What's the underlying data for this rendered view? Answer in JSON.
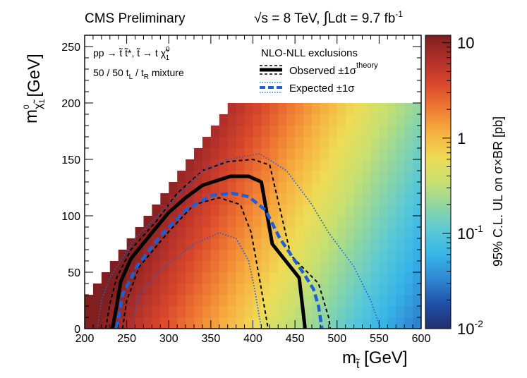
{
  "chart_data": {
    "type": "heatmap",
    "header_left": "CMS Preliminary",
    "header_right": {
      "sqrt_symbol": "√",
      "energy_text": "s = 8 TeV, ",
      "integral_symbol": "∫",
      "lumi_text": "Ldt = 9.7 fb",
      "lumi_exp": "-1"
    },
    "process": {
      "line1": "pp → t̃ t̃*, t̃ → t χ̃",
      "line1_sup": "0",
      "line1_sub": "1",
      "line2": "50 / 50 t",
      "line2_sub1": "L",
      "line2_mid": " / t",
      "line2_sub2": "R",
      "line2_end": " mixture"
    },
    "legend": {
      "title": "NLO-NLL exclusions",
      "observed_label": "Observed ±1σ",
      "observed_sup": "theory",
      "expected_label": "Expected ±1σ"
    },
    "xaxis": {
      "label_main": "m",
      "label_sub": "t̃",
      "label_unit": " [GeV]",
      "range": [
        200,
        600
      ],
      "ticks": [
        "200",
        "250",
        "300",
        "350",
        "400",
        "450",
        "500",
        "550",
        "600"
      ]
    },
    "yaxis": {
      "label_main": "m",
      "label_sub": "χ̃",
      "label_subsub": "1",
      "label_sup": "0",
      "label_unit": " [GeV]",
      "range": [
        0,
        260
      ],
      "ticks": [
        "0",
        "50",
        "100",
        "150",
        "200",
        "250"
      ]
    },
    "zaxis": {
      "label": "95% C.L. UL on σ×BR [pb]",
      "scale": "log",
      "range": [
        0.01,
        12
      ],
      "tick_10": "10",
      "tick_1": "1",
      "tick_01_base": "10",
      "tick_01_exp": "-1",
      "tick_001_base": "10",
      "tick_001_exp": "-2"
    },
    "grid": {
      "x_start": 200,
      "x_end": 600,
      "dx": 10,
      "y_start": 0,
      "y_end": 195,
      "dy": 10,
      "diagonal_offset": 175
    },
    "colors": {
      "observed": "#000000",
      "expected": "#1f5fd6",
      "palette": [
        "#22306e",
        "#1f4fa6",
        "#2f86d2",
        "#37b4e8",
        "#5ac9d6",
        "#8ed6a2",
        "#c8e070",
        "#eedc55",
        "#f6b140",
        "#ef7a33",
        "#d9472b",
        "#b02f2a",
        "#7f1f1f"
      ]
    },
    "series": [
      {
        "name": "Observed",
        "style": "solid-thick",
        "points": [
          [
            233,
            0
          ],
          [
            238,
            20
          ],
          [
            243,
            42
          ],
          [
            255,
            62
          ],
          [
            280,
            85
          ],
          [
            300,
            103
          ],
          [
            320,
            116
          ],
          [
            340,
            127
          ],
          [
            373,
            135
          ],
          [
            395,
            135
          ],
          [
            410,
            130
          ],
          [
            423,
            75
          ],
          [
            455,
            45
          ],
          [
            462,
            0
          ]
        ]
      },
      {
        "name": "Observed +1σ theory",
        "style": "dashed",
        "points": [
          [
            225,
            0
          ],
          [
            230,
            22
          ],
          [
            238,
            45
          ],
          [
            255,
            70
          ],
          [
            285,
            95
          ],
          [
            310,
            120
          ],
          [
            340,
            140
          ],
          [
            370,
            148
          ],
          [
            400,
            150
          ],
          [
            420,
            145
          ],
          [
            445,
            65
          ],
          [
            478,
            40
          ],
          [
            490,
            10
          ],
          [
            492,
            0
          ]
        ]
      },
      {
        "name": "Observed -1σ theory",
        "style": "dashed",
        "points": [
          [
            245,
            0
          ],
          [
            250,
            25
          ],
          [
            265,
            55
          ],
          [
            300,
            86
          ],
          [
            330,
            110
          ],
          [
            360,
            116
          ],
          [
            385,
            110
          ],
          [
            398,
            85
          ],
          [
            410,
            35
          ],
          [
            418,
            0
          ]
        ]
      },
      {
        "name": "Expected",
        "style": "dashed-thick",
        "points": [
          [
            238,
            0
          ],
          [
            245,
            30
          ],
          [
            262,
            55
          ],
          [
            290,
            82
          ],
          [
            320,
            105
          ],
          [
            350,
            118
          ],
          [
            375,
            120
          ],
          [
            395,
            117
          ],
          [
            415,
            105
          ],
          [
            432,
            80
          ],
          [
            462,
            47
          ],
          [
            472,
            35
          ],
          [
            478,
            20
          ],
          [
            482,
            0
          ]
        ]
      },
      {
        "name": "Expected +1σ",
        "style": "dotted",
        "points": [
          [
            215,
            0
          ],
          [
            220,
            25
          ],
          [
            230,
            45
          ],
          [
            260,
            80
          ],
          [
            300,
            110
          ],
          [
            340,
            140
          ],
          [
            370,
            150
          ],
          [
            408,
            155
          ],
          [
            440,
            140
          ],
          [
            470,
            110
          ],
          [
            490,
            85
          ],
          [
            520,
            55
          ],
          [
            540,
            25
          ],
          [
            552,
            0
          ]
        ]
      },
      {
        "name": "Expected -1σ",
        "style": "dotted",
        "points": [
          [
            255,
            0
          ],
          [
            265,
            30
          ],
          [
            290,
            52
          ],
          [
            330,
            75
          ],
          [
            360,
            85
          ],
          [
            380,
            80
          ],
          [
            395,
            60
          ],
          [
            402,
            35
          ],
          [
            410,
            0
          ]
        ]
      }
    ]
  }
}
